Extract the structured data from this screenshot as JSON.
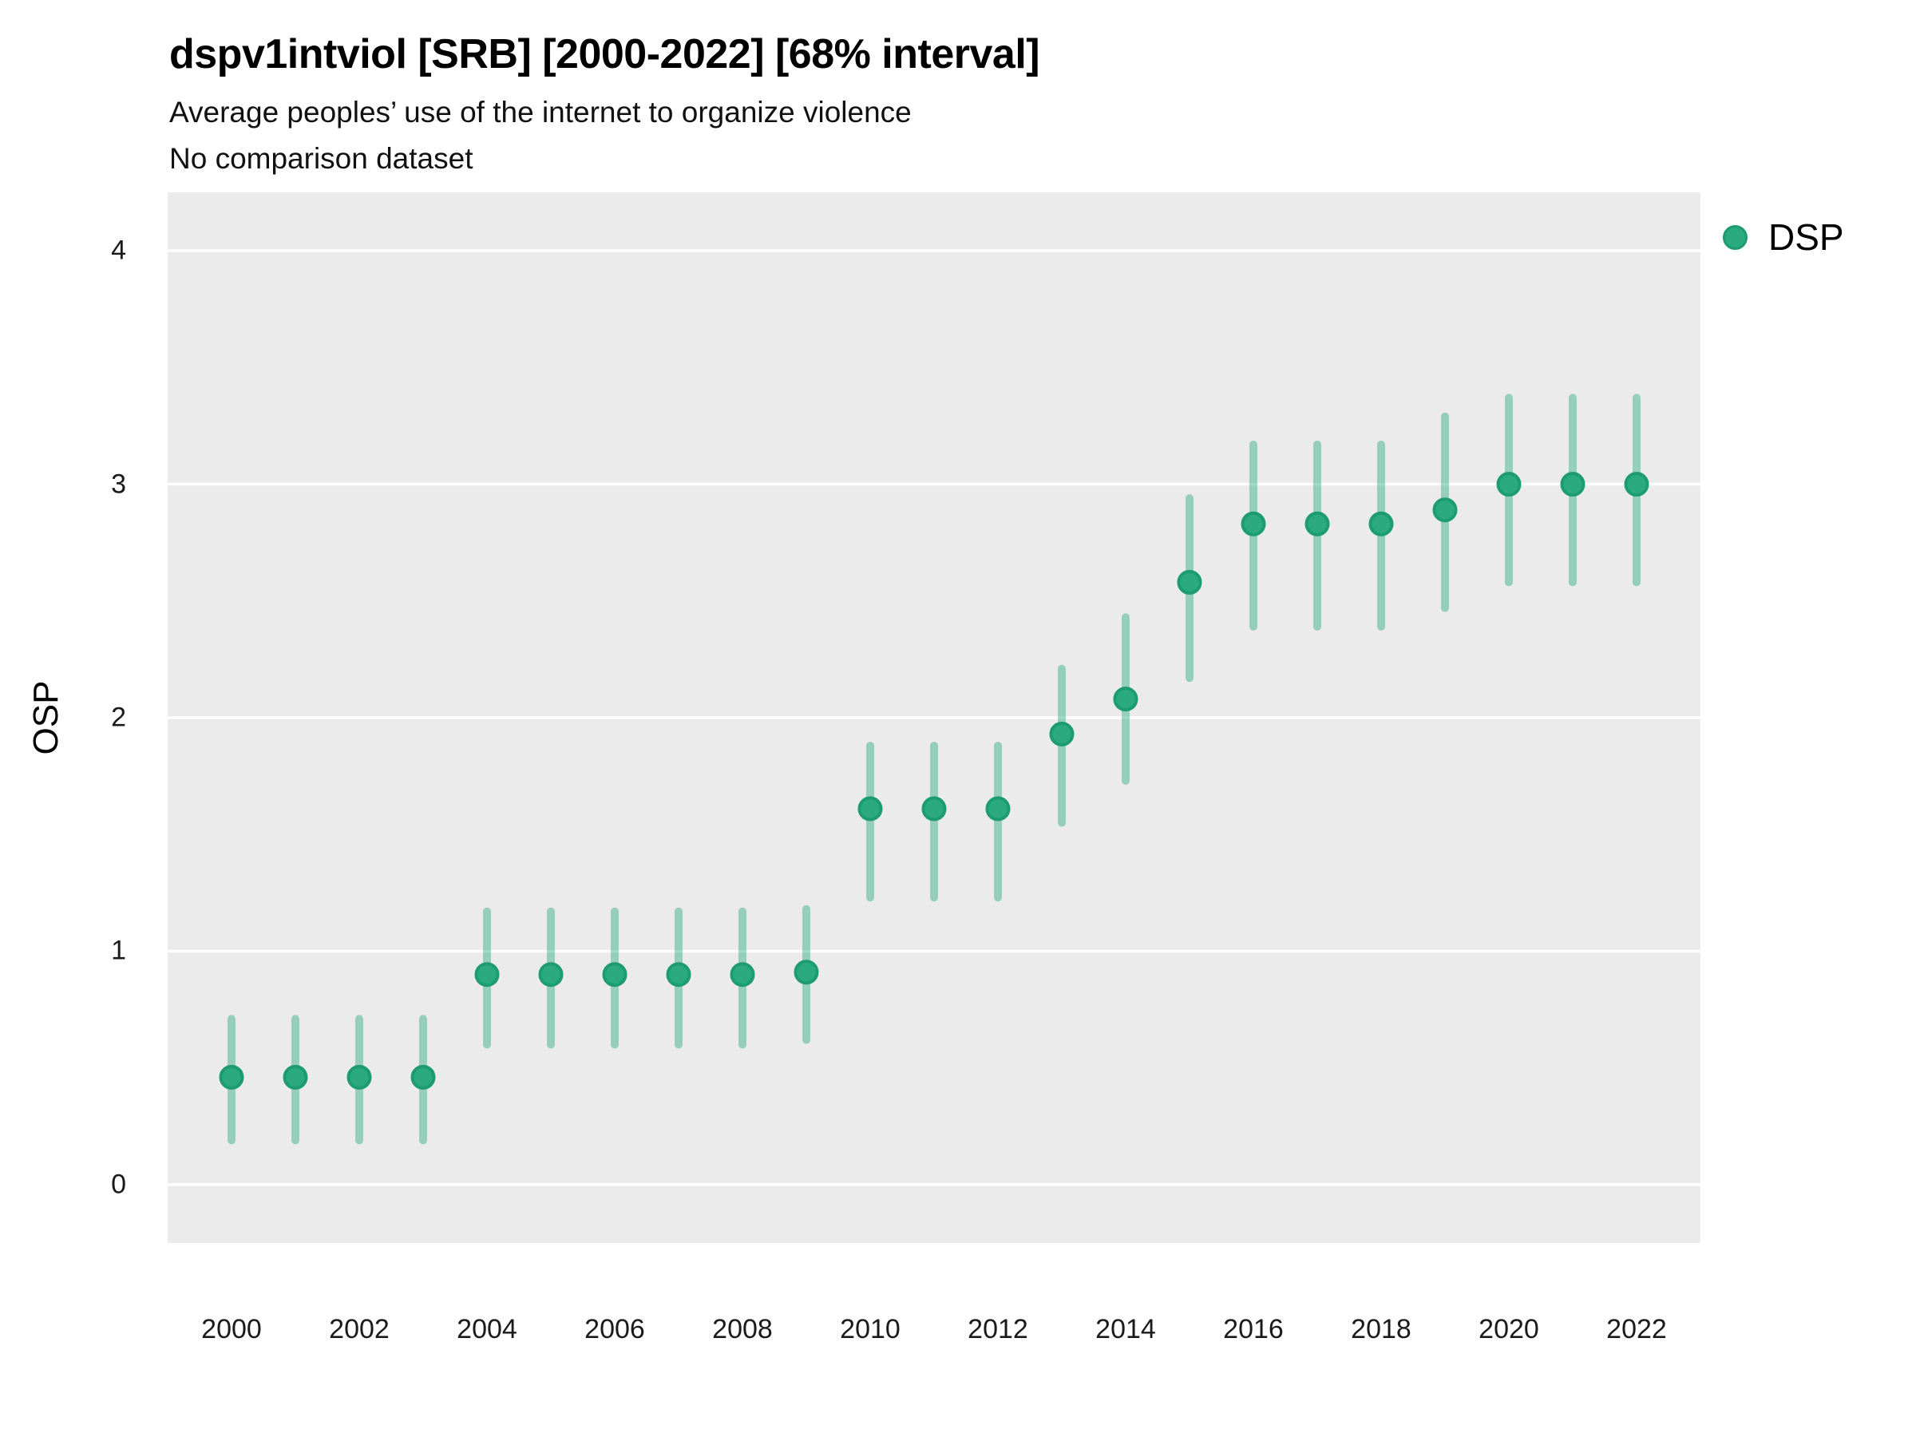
{
  "header": {
    "title": "dspv1intviol [SRB] [2000-2022] [68% interval]",
    "subtitle_line1": "Average peoples’ use of the internet to organize violence",
    "subtitle_line2": "No comparison dataset"
  },
  "legend": {
    "position": "right-top",
    "items": [
      {
        "label": "DSP",
        "marker": "circle"
      }
    ]
  },
  "colors": {
    "panel_background": "#EBEBEB",
    "gridline": "#FFFFFF",
    "point_fill": "#2BAA80",
    "point_stroke": "#1D9B71",
    "interval_bar": "rgba(44,170,126,0.45)",
    "text": "#1a1a1a"
  },
  "chart_data": {
    "type": "scatter",
    "title": "dspv1intviol [SRB] [2000-2022] [68% interval]",
    "subtitle": "Average peoples’ use of the internet to organize violence",
    "note": "No comparison dataset",
    "interval": "68%",
    "xlabel": "",
    "ylabel": "OSP",
    "xlim": [
      1999,
      2023
    ],
    "ylim": [
      -0.25,
      4.25
    ],
    "x_ticks": [
      2000,
      2002,
      2004,
      2006,
      2008,
      2010,
      2012,
      2014,
      2016,
      2018,
      2020,
      2022
    ],
    "y_ticks": [
      0,
      1,
      2,
      3,
      4
    ],
    "y_gridlines": [
      0,
      1,
      2,
      3,
      4
    ],
    "grid": "major-horizontal-only",
    "legend_position": "right-top",
    "series": [
      {
        "name": "DSP",
        "x": [
          2000,
          2001,
          2002,
          2003,
          2004,
          2005,
          2006,
          2007,
          2008,
          2009,
          2010,
          2011,
          2012,
          2013,
          2014,
          2015,
          2016,
          2017,
          2018,
          2019,
          2020,
          2021,
          2022
        ],
        "y": [
          0.46,
          0.46,
          0.46,
          0.46,
          0.9,
          0.9,
          0.9,
          0.9,
          0.9,
          0.91,
          1.61,
          1.61,
          1.61,
          1.93,
          2.08,
          2.58,
          2.83,
          2.83,
          2.83,
          2.89,
          3.0,
          3.0,
          3.0
        ],
        "y_lo": [
          0.19,
          0.19,
          0.19,
          0.19,
          0.6,
          0.6,
          0.6,
          0.6,
          0.6,
          0.62,
          1.23,
          1.23,
          1.23,
          1.55,
          1.73,
          2.17,
          2.39,
          2.39,
          2.39,
          2.47,
          2.58,
          2.58,
          2.58
        ],
        "y_hi": [
          0.71,
          0.71,
          0.71,
          0.71,
          1.17,
          1.17,
          1.17,
          1.17,
          1.17,
          1.18,
          1.88,
          1.88,
          1.88,
          2.21,
          2.43,
          2.94,
          3.17,
          3.17,
          3.17,
          3.29,
          3.37,
          3.37,
          3.37
        ]
      }
    ]
  }
}
